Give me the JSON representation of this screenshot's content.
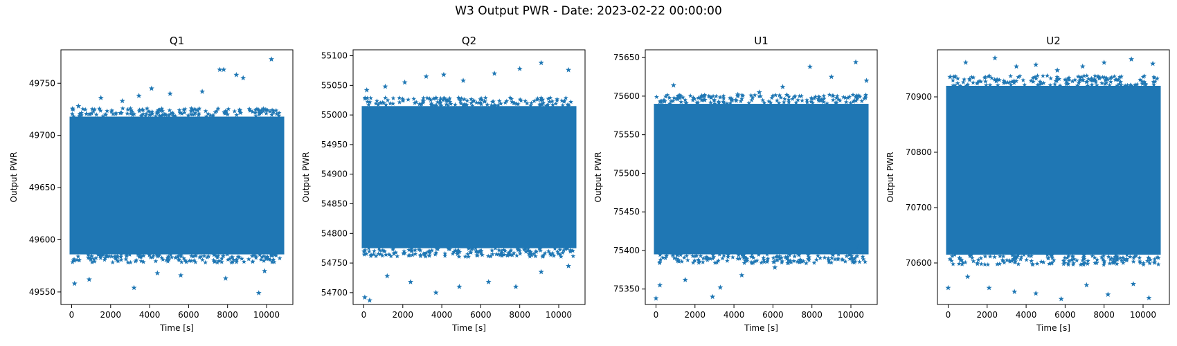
{
  "figure": {
    "title": "W3 Output PWR - Date: 2023-02-22 00:00:00",
    "marker": "star",
    "marker_color": "#1f77b4"
  },
  "chart_data": [
    {
      "type": "scatter",
      "title": "Q1",
      "xlabel": "Time [s]",
      "ylabel": "Output PWR",
      "xlim": [
        -550,
        11350
      ],
      "ylim": [
        49538,
        49782
      ],
      "xticks": [
        0,
        2000,
        4000,
        6000,
        8000,
        10000
      ],
      "yticks": [
        49550,
        49600,
        49650,
        49700,
        49750
      ],
      "x_range": [
        0,
        10800
      ],
      "band": {
        "low": 49586,
        "high": 49718
      },
      "outliers": [
        [
          150,
          49558
        ],
        [
          900,
          49562
        ],
        [
          3200,
          49554
        ],
        [
          4400,
          49568
        ],
        [
          5600,
          49566
        ],
        [
          7900,
          49563
        ],
        [
          9600,
          49549
        ],
        [
          9900,
          49570
        ],
        [
          350,
          49728
        ],
        [
          1500,
          49736
        ],
        [
          2600,
          49733
        ],
        [
          3450,
          49738
        ],
        [
          4100,
          49745
        ],
        [
          5050,
          49740
        ],
        [
          6700,
          49742
        ],
        [
          7600,
          49763
        ],
        [
          7800,
          49763
        ],
        [
          8450,
          49758
        ],
        [
          8800,
          49755
        ],
        [
          10250,
          49773
        ]
      ],
      "grid": false
    },
    {
      "type": "scatter",
      "title": "Q2",
      "xlabel": "Time [s]",
      "ylabel": "Output PWR",
      "xlim": [
        -550,
        11350
      ],
      "ylim": [
        54680,
        55110
      ],
      "xticks": [
        0,
        2000,
        4000,
        6000,
        8000,
        10000
      ],
      "yticks": [
        54700,
        54750,
        54800,
        54850,
        54900,
        54950,
        55000,
        55050,
        55100
      ],
      "x_range": [
        0,
        10800
      ],
      "band": {
        "low": 54775,
        "high": 55015
      },
      "outliers": [
        [
          50,
          54692
        ],
        [
          300,
          54687
        ],
        [
          1200,
          54728
        ],
        [
          2400,
          54718
        ],
        [
          3700,
          54700
        ],
        [
          4900,
          54710
        ],
        [
          6400,
          54718
        ],
        [
          7800,
          54710
        ],
        [
          9100,
          54735
        ],
        [
          10500,
          54745
        ],
        [
          150,
          55042
        ],
        [
          1100,
          55048
        ],
        [
          2100,
          55055
        ],
        [
          3200,
          55065
        ],
        [
          4100,
          55068
        ],
        [
          5100,
          55058
        ],
        [
          6700,
          55070
        ],
        [
          8000,
          55078
        ],
        [
          9100,
          55088
        ],
        [
          10500,
          55076
        ]
      ],
      "grid": false
    },
    {
      "type": "scatter",
      "title": "U1",
      "xlabel": "Time [s]",
      "ylabel": "Output PWR",
      "xlim": [
        -550,
        11350
      ],
      "ylim": [
        75330,
        75660
      ],
      "xticks": [
        0,
        2000,
        4000,
        6000,
        8000,
        10000
      ],
      "yticks": [
        75350,
        75400,
        75450,
        75500,
        75550,
        75600,
        75650
      ],
      "x_range": [
        0,
        10800
      ],
      "band": {
        "low": 75395,
        "high": 75590
      },
      "outliers": [
        [
          0,
          75338
        ],
        [
          200,
          75355
        ],
        [
          1500,
          75362
        ],
        [
          2900,
          75340
        ],
        [
          3300,
          75352
        ],
        [
          4400,
          75368
        ],
        [
          6100,
          75378
        ],
        [
          7400,
          75388
        ],
        [
          9200,
          75398
        ],
        [
          10400,
          75405
        ],
        [
          150,
          75588
        ],
        [
          900,
          75614
        ],
        [
          2500,
          75595
        ],
        [
          4200,
          75602
        ],
        [
          5300,
          75605
        ],
        [
          6500,
          75612
        ],
        [
          7900,
          75638
        ],
        [
          9000,
          75625
        ],
        [
          10250,
          75644
        ],
        [
          10800,
          75620
        ]
      ],
      "grid": false
    },
    {
      "type": "scatter",
      "title": "U2",
      "xlabel": "Time [s]",
      "ylabel": "Output PWR",
      "xlim": [
        -550,
        11350
      ],
      "ylim": [
        70525,
        70985
      ],
      "xticks": [
        0,
        2000,
        4000,
        6000,
        8000,
        10000
      ],
      "yticks": [
        70600,
        70700,
        70800,
        70900
      ],
      "x_range": [
        0,
        10800
      ],
      "band": {
        "low": 70615,
        "high": 70920
      },
      "outliers": [
        [
          0,
          70555
        ],
        [
          1000,
          70575
        ],
        [
          2100,
          70555
        ],
        [
          3400,
          70548
        ],
        [
          4500,
          70545
        ],
        [
          5800,
          70535
        ],
        [
          7100,
          70560
        ],
        [
          8200,
          70543
        ],
        [
          9500,
          70562
        ],
        [
          10300,
          70537
        ],
        [
          100,
          70936
        ],
        [
          900,
          70962
        ],
        [
          2400,
          70970
        ],
        [
          3500,
          70955
        ],
        [
          4500,
          70958
        ],
        [
          5600,
          70948
        ],
        [
          6900,
          70955
        ],
        [
          8000,
          70962
        ],
        [
          9400,
          70968
        ],
        [
          10500,
          70960
        ]
      ],
      "grid": false
    }
  ]
}
